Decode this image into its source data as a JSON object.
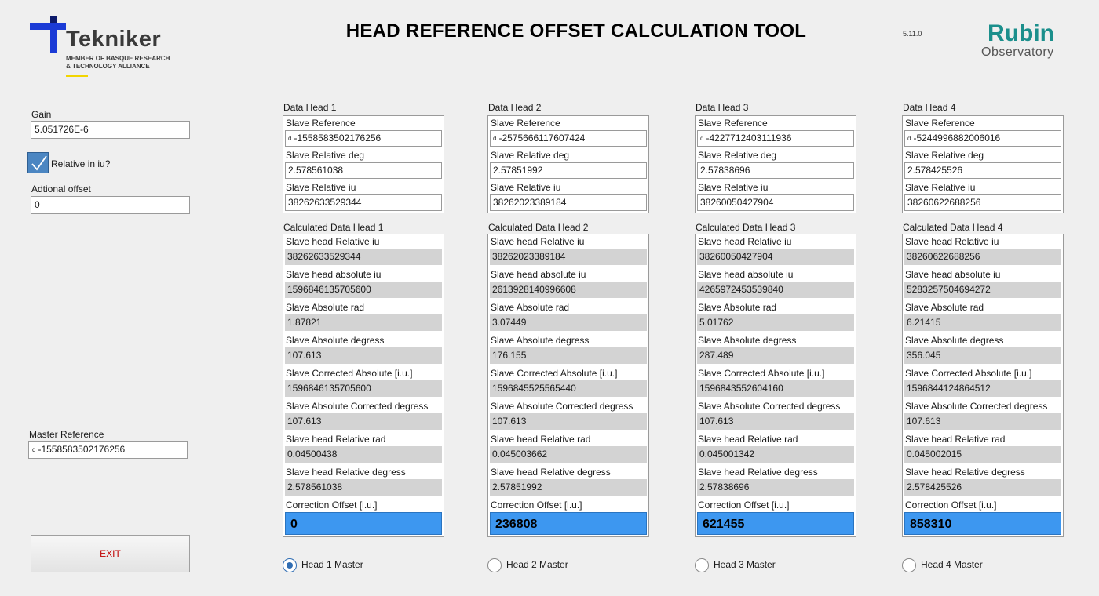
{
  "header": {
    "title": "HEAD REFERENCE OFFSET CALCULATION TOOL",
    "version": "5.11.0",
    "logo_left": {
      "name": "Tekniker",
      "sub1": "MEMBER OF BASQUE RESEARCH",
      "sub2": "& TECHNOLOGY ALLIANCE"
    },
    "logo_right": {
      "line1": "Rubin",
      "line2": "Observatory"
    }
  },
  "left": {
    "gain_label": "Gain",
    "gain_value": "5.051726E-6",
    "relative_label": "Relative in iu?",
    "relative_checked": true,
    "offset_label": "Adtional offset",
    "offset_value": "0",
    "master_label": "Master Reference",
    "master_value": "-1558583502176256",
    "exit_label": "EXIT"
  },
  "labels": {
    "slave_reference": "Slave Reference",
    "slave_relative_deg": "Slave Relative deg",
    "slave_relative_iu": "Slave Relative iu",
    "head_relative_iu": "Slave head Relative iu",
    "head_absolute_iu": "Slave head absolute iu",
    "absolute_rad": "Slave Absolute rad",
    "absolute_degress": "Slave Absolute degress",
    "corrected_absolute": "Slave Corrected Absolute [i.u.]",
    "absolute_corrected_degress": "Slave Absolute Corrected degress",
    "head_relative_rad": "Slave head Relative rad",
    "head_relative_degress": "Slave head Relative degress",
    "correction_offset": "Correction Offset [i.u.]"
  },
  "heads": [
    {
      "data_title": "Data Head 1",
      "calc_title": "Calculated Data Head 1",
      "slave_reference": "-1558583502176256",
      "slave_relative_deg": "2.578561038",
      "slave_relative_iu": "38262633529344",
      "head_relative_iu": "38262633529344",
      "head_absolute_iu": "1596846135705600",
      "absolute_rad": "1.87821",
      "absolute_degress": "107.613",
      "corrected_absolute": "1596846135705600",
      "absolute_corrected_degress": "107.613",
      "head_relative_rad": "0.04500438",
      "head_relative_degress": "2.578561038",
      "correction_offset": "0",
      "radio_label": "Head 1 Master",
      "selected": true
    },
    {
      "data_title": "Data Head 2",
      "calc_title": "Calculated Data Head 2",
      "slave_reference": "-2575666117607424",
      "slave_relative_deg": "2.57851992",
      "slave_relative_iu": "38262023389184",
      "head_relative_iu": "38262023389184",
      "head_absolute_iu": "2613928140996608",
      "absolute_rad": "3.07449",
      "absolute_degress": "176.155",
      "corrected_absolute": "1596845525565440",
      "absolute_corrected_degress": "107.613",
      "head_relative_rad": "0.045003662",
      "head_relative_degress": "2.57851992",
      "correction_offset": "236808",
      "radio_label": "Head 2 Master",
      "selected": false
    },
    {
      "data_title": "Data Head 3",
      "calc_title": "Calculated Data Head 3",
      "slave_reference": "-4227712403111936",
      "slave_relative_deg": "2.57838696",
      "slave_relative_iu": "38260050427904",
      "head_relative_iu": "38260050427904",
      "head_absolute_iu": "4265972453539840",
      "absolute_rad": "5.01762",
      "absolute_degress": "287.489",
      "corrected_absolute": "1596843552604160",
      "absolute_corrected_degress": "107.613",
      "head_relative_rad": "0.045001342",
      "head_relative_degress": "2.57838696",
      "correction_offset": "621455",
      "radio_label": "Head 3 Master",
      "selected": false
    },
    {
      "data_title": "Data Head 4",
      "calc_title": "Calculated Data Head 4",
      "slave_reference": "-5244996882006016",
      "slave_relative_deg": "2.578425526",
      "slave_relative_iu": "38260622688256",
      "head_relative_iu": "38260622688256",
      "head_absolute_iu": "5283257504694272",
      "absolute_rad": "6.21415",
      "absolute_degress": "356.045",
      "corrected_absolute": "1596844124864512",
      "absolute_corrected_degress": "107.613",
      "head_relative_rad": "0.045002015",
      "head_relative_degress": "2.578425526",
      "correction_offset": "858310",
      "radio_label": "Head 4 Master",
      "selected": false
    }
  ]
}
